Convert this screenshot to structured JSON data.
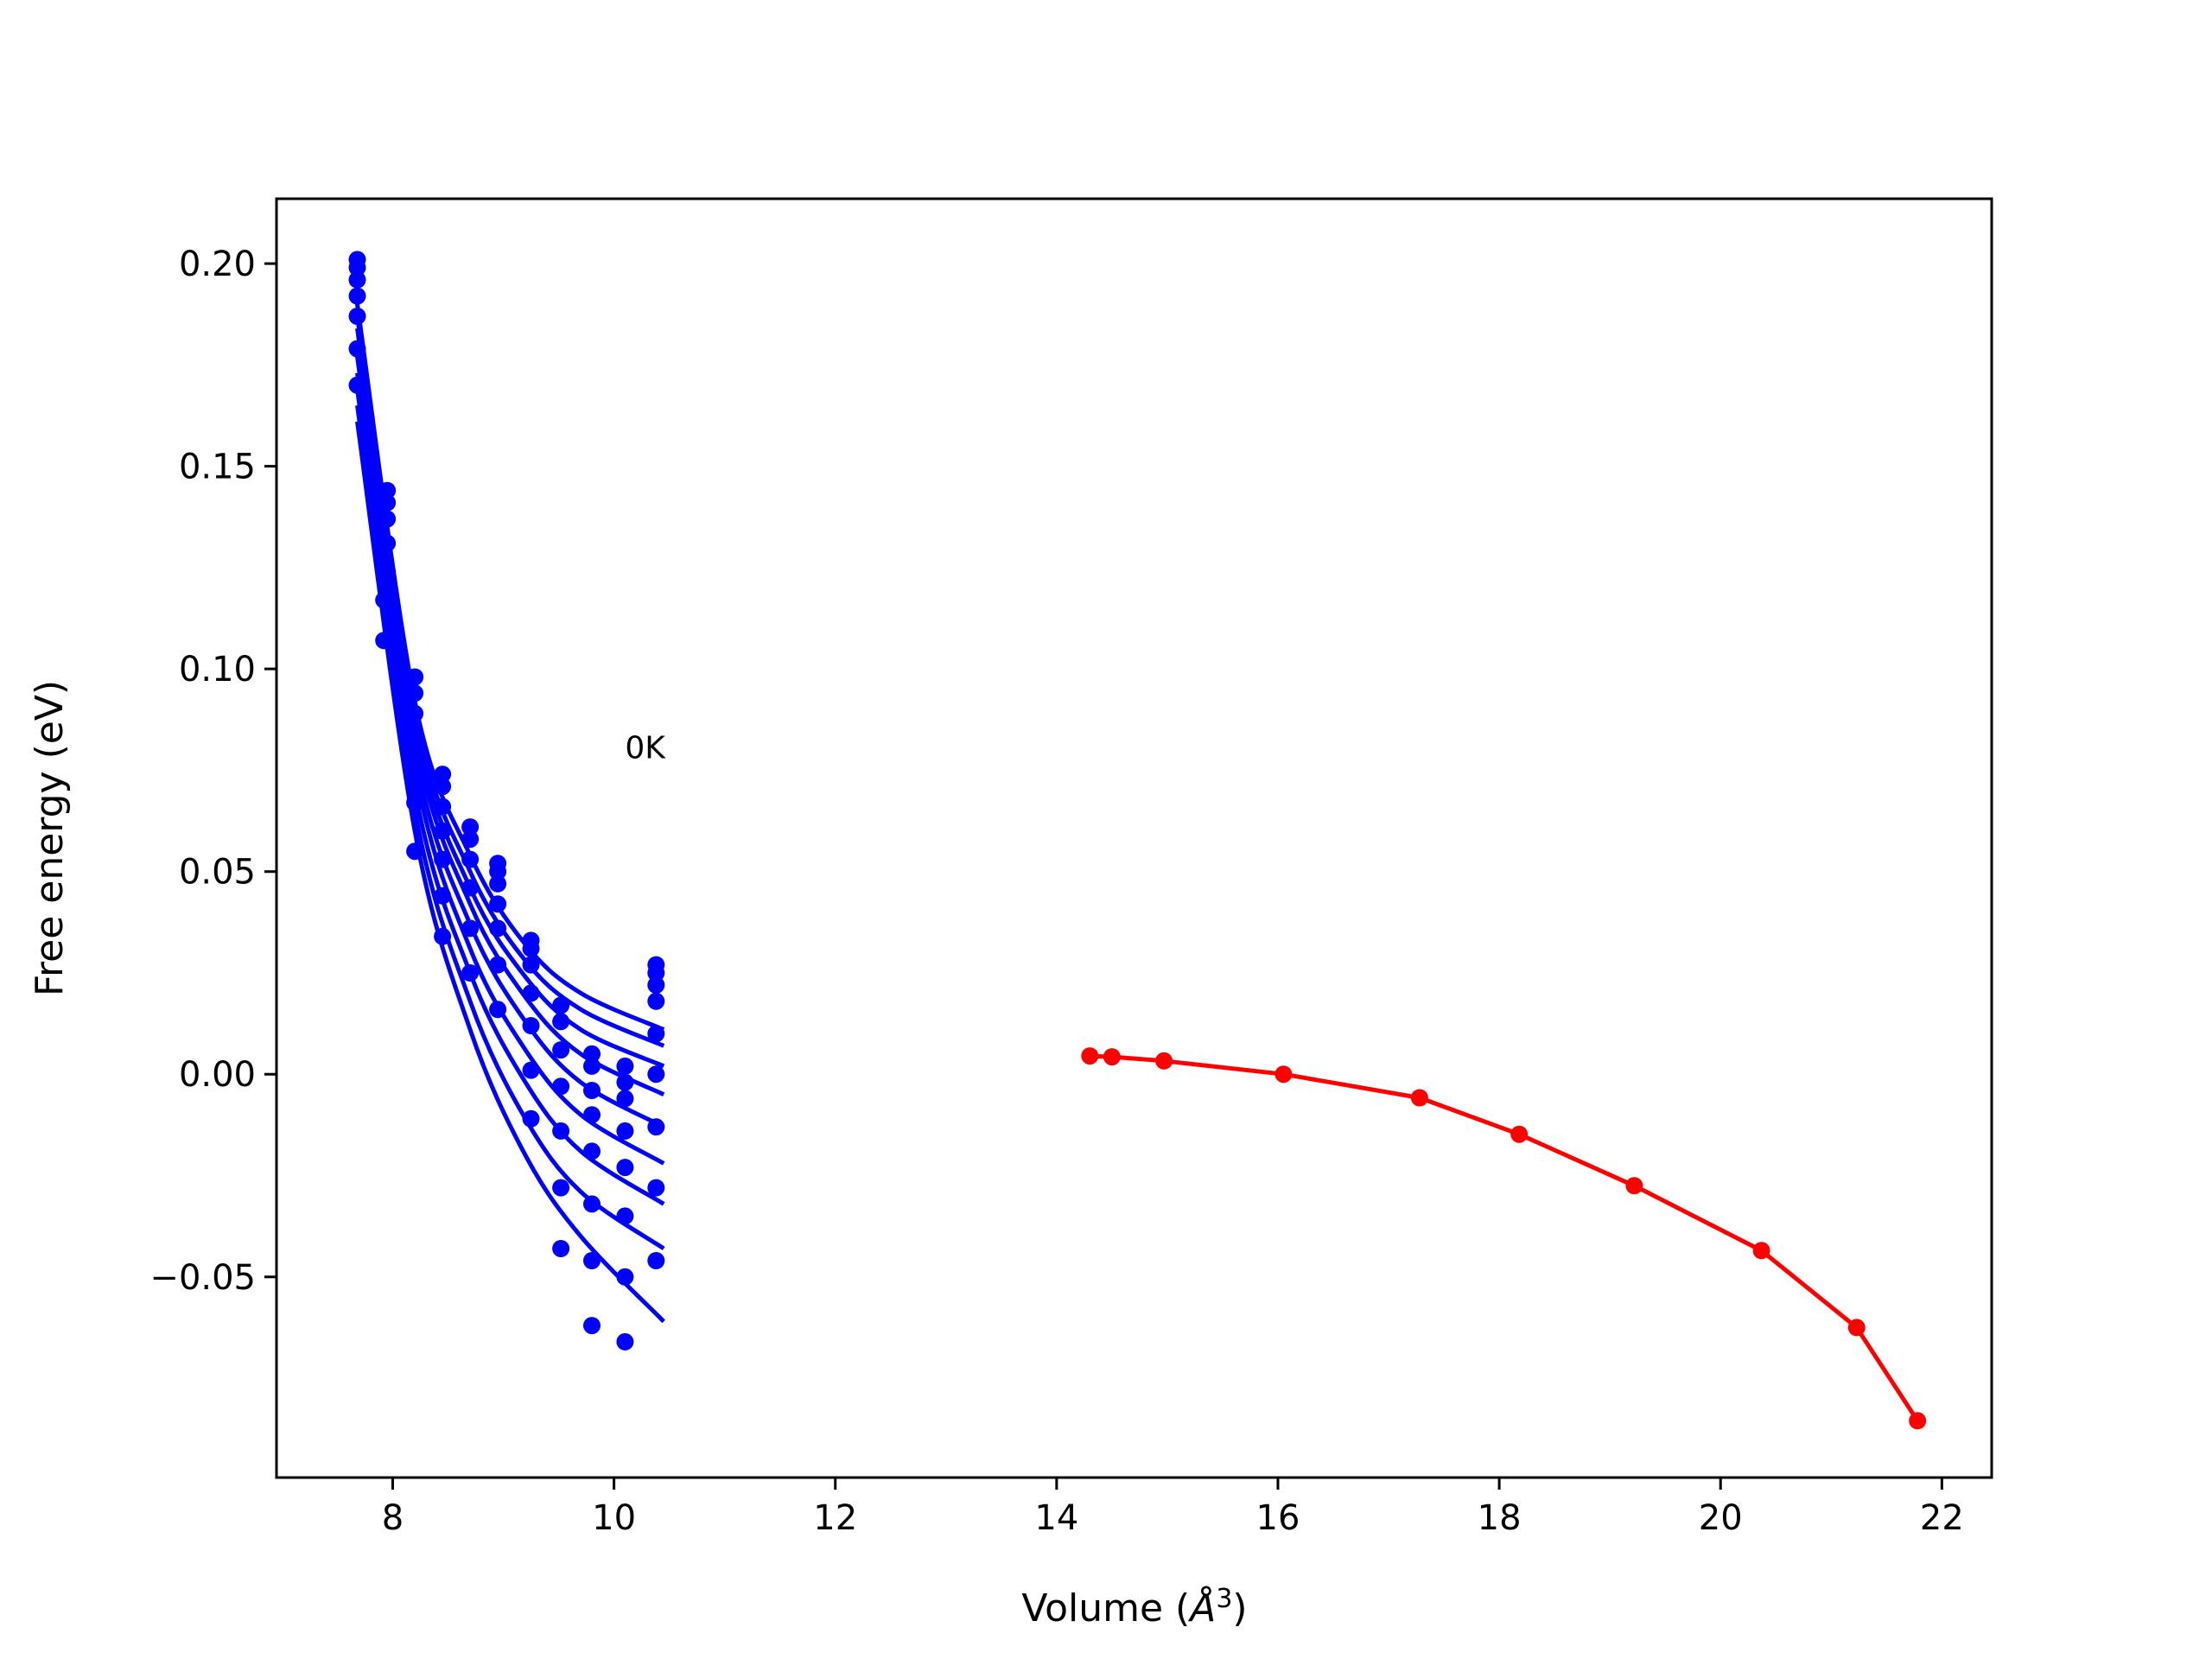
{
  "chart_data": {
    "type": "scatter",
    "title": "",
    "xlabel": "Volume (Å³)",
    "xlabel_parts": {
      "prefix": "Volume (",
      "symbol": "Å",
      "exponent": "3",
      "suffix": ")"
    },
    "ylabel": "Free energy (eV)",
    "xlim": [
      6.95,
      22.45
    ],
    "ylim": [
      -0.0995,
      0.216
    ],
    "xticks": [
      8,
      10,
      12,
      14,
      16,
      18,
      20,
      22
    ],
    "xtick_labels": [
      "8",
      "10",
      "12",
      "14",
      "16",
      "18",
      "20",
      "22"
    ],
    "yticks": [
      -0.05,
      0.0,
      0.05,
      0.1,
      0.15,
      0.2
    ],
    "ytick_labels": [
      "−0.05",
      "0.00",
      "0.05",
      "0.10",
      "0.15",
      "0.20"
    ],
    "grid": false,
    "legend": "none",
    "annotation": {
      "text": "0K",
      "x": 10.1,
      "y": 0.078
    },
    "colors": {
      "blue_series": "#0000ff",
      "red_series": "#ff0000",
      "axes": "#000000"
    },
    "blue_fit_curves": {
      "x_range": [
        7.68,
        10.45
      ],
      "curves": [
        {
          "values": {
            "x": [
              7.68,
              8.2,
              8.7,
              9.2,
              9.7,
              10.45
            ],
            "y": [
              0.19,
              0.092,
              0.054,
              0.032,
              0.02,
              0.011
            ]
          }
        },
        {
          "values": {
            "x": [
              7.68,
              8.2,
              8.7,
              9.2,
              9.7,
              10.45
            ],
            "y": [
              0.187,
              0.089,
              0.05,
              0.028,
              0.016,
              0.007
            ]
          }
        },
        {
          "values": {
            "x": [
              7.68,
              8.2,
              8.7,
              9.2,
              9.7,
              10.45
            ],
            "y": [
              0.184,
              0.086,
              0.046,
              0.024,
              0.011,
              0.002
            ]
          }
        },
        {
          "values": {
            "x": [
              7.68,
              8.2,
              8.7,
              9.2,
              9.7,
              10.45
            ],
            "y": [
              0.181,
              0.083,
              0.042,
              0.019,
              0.005,
              -0.005
            ]
          }
        },
        {
          "values": {
            "x": [
              7.68,
              8.2,
              8.7,
              9.2,
              9.7,
              10.45
            ],
            "y": [
              0.177,
              0.079,
              0.037,
              0.013,
              -0.002,
              -0.013
            ]
          }
        },
        {
          "values": {
            "x": [
              7.68,
              8.2,
              8.7,
              9.2,
              9.7,
              10.45
            ],
            "y": [
              0.173,
              0.075,
              0.031,
              0.006,
              -0.01,
              -0.022
            ]
          }
        },
        {
          "values": {
            "x": [
              7.68,
              8.2,
              8.7,
              9.2,
              9.7,
              10.45
            ],
            "y": [
              0.169,
              0.07,
              0.025,
              -0.002,
              -0.019,
              -0.032
            ]
          }
        },
        {
          "values": {
            "x": [
              7.68,
              8.2,
              8.7,
              9.2,
              9.7,
              10.45
            ],
            "y": [
              0.165,
              0.065,
              0.018,
              -0.011,
              -0.029,
              -0.043
            ]
          }
        },
        {
          "values": {
            "x": [
              7.68,
              8.2,
              8.7,
              9.2,
              9.7,
              10.45
            ],
            "y": [
              0.161,
              0.06,
              0.011,
              -0.02,
              -0.04,
              -0.061
            ]
          }
        }
      ]
    },
    "blue_points": [
      [
        7.68,
        0.201
      ],
      [
        7.68,
        0.199
      ],
      [
        7.68,
        0.196
      ],
      [
        7.68,
        0.192
      ],
      [
        7.68,
        0.187
      ],
      [
        7.68,
        0.179
      ],
      [
        7.68,
        0.17
      ],
      [
        7.95,
        0.144
      ],
      [
        7.95,
        0.141
      ],
      [
        7.95,
        0.137
      ],
      [
        7.95,
        0.131
      ],
      [
        7.95,
        0.124
      ],
      [
        7.92,
        0.117
      ],
      [
        7.92,
        0.107
      ],
      [
        8.2,
        0.098
      ],
      [
        8.2,
        0.094
      ],
      [
        8.2,
        0.089
      ],
      [
        8.2,
        0.083
      ],
      [
        8.2,
        0.076
      ],
      [
        8.2,
        0.067
      ],
      [
        8.2,
        0.055
      ],
      [
        8.45,
        0.074
      ],
      [
        8.45,
        0.071
      ],
      [
        8.45,
        0.066
      ],
      [
        8.45,
        0.06
      ],
      [
        8.45,
        0.053
      ],
      [
        8.45,
        0.044
      ],
      [
        8.45,
        0.034
      ],
      [
        8.7,
        0.061
      ],
      [
        8.7,
        0.058
      ],
      [
        8.7,
        0.053
      ],
      [
        8.7,
        0.046
      ],
      [
        8.7,
        0.036
      ],
      [
        8.7,
        0.025
      ],
      [
        8.95,
        0.052
      ],
      [
        8.95,
        0.05
      ],
      [
        8.95,
        0.047
      ],
      [
        8.95,
        0.042
      ],
      [
        8.95,
        0.036
      ],
      [
        8.95,
        0.027
      ],
      [
        8.95,
        0.016
      ],
      [
        9.25,
        0.033
      ],
      [
        9.25,
        0.031
      ],
      [
        9.25,
        0.027
      ],
      [
        9.25,
        0.02
      ],
      [
        9.25,
        0.012
      ],
      [
        9.25,
        0.001
      ],
      [
        9.25,
        -0.011
      ],
      [
        9.52,
        0.017
      ],
      [
        9.52,
        0.013
      ],
      [
        9.52,
        0.006
      ],
      [
        9.52,
        -0.003
      ],
      [
        9.52,
        -0.014
      ],
      [
        9.52,
        -0.028
      ],
      [
        9.52,
        -0.043
      ],
      [
        9.8,
        0.005
      ],
      [
        9.8,
        0.002
      ],
      [
        9.8,
        -0.004
      ],
      [
        9.8,
        -0.01
      ],
      [
        9.8,
        -0.019
      ],
      [
        9.8,
        -0.032
      ],
      [
        9.8,
        -0.046
      ],
      [
        9.8,
        -0.062
      ],
      [
        10.1,
        0.002
      ],
      [
        10.1,
        -0.002
      ],
      [
        10.1,
        -0.006
      ],
      [
        10.1,
        -0.014
      ],
      [
        10.1,
        -0.023
      ],
      [
        10.1,
        -0.035
      ],
      [
        10.1,
        -0.05
      ],
      [
        10.1,
        -0.066
      ],
      [
        10.38,
        0.027
      ],
      [
        10.38,
        0.025
      ],
      [
        10.38,
        0.022
      ],
      [
        10.38,
        0.018
      ],
      [
        10.38,
        0.01
      ],
      [
        10.38,
        0.0
      ],
      [
        10.38,
        -0.013
      ],
      [
        10.38,
        -0.028
      ],
      [
        10.38,
        -0.046
      ]
    ],
    "red_series": {
      "x": [
        14.3,
        14.5,
        14.97,
        16.05,
        17.28,
        18.18,
        19.22,
        20.37,
        21.23,
        21.78
      ],
      "y": [
        0.0045,
        0.0043,
        0.0033,
        0.0,
        -0.0058,
        -0.0148,
        -0.0275,
        -0.0435,
        -0.0625,
        -0.0855
      ]
    }
  }
}
